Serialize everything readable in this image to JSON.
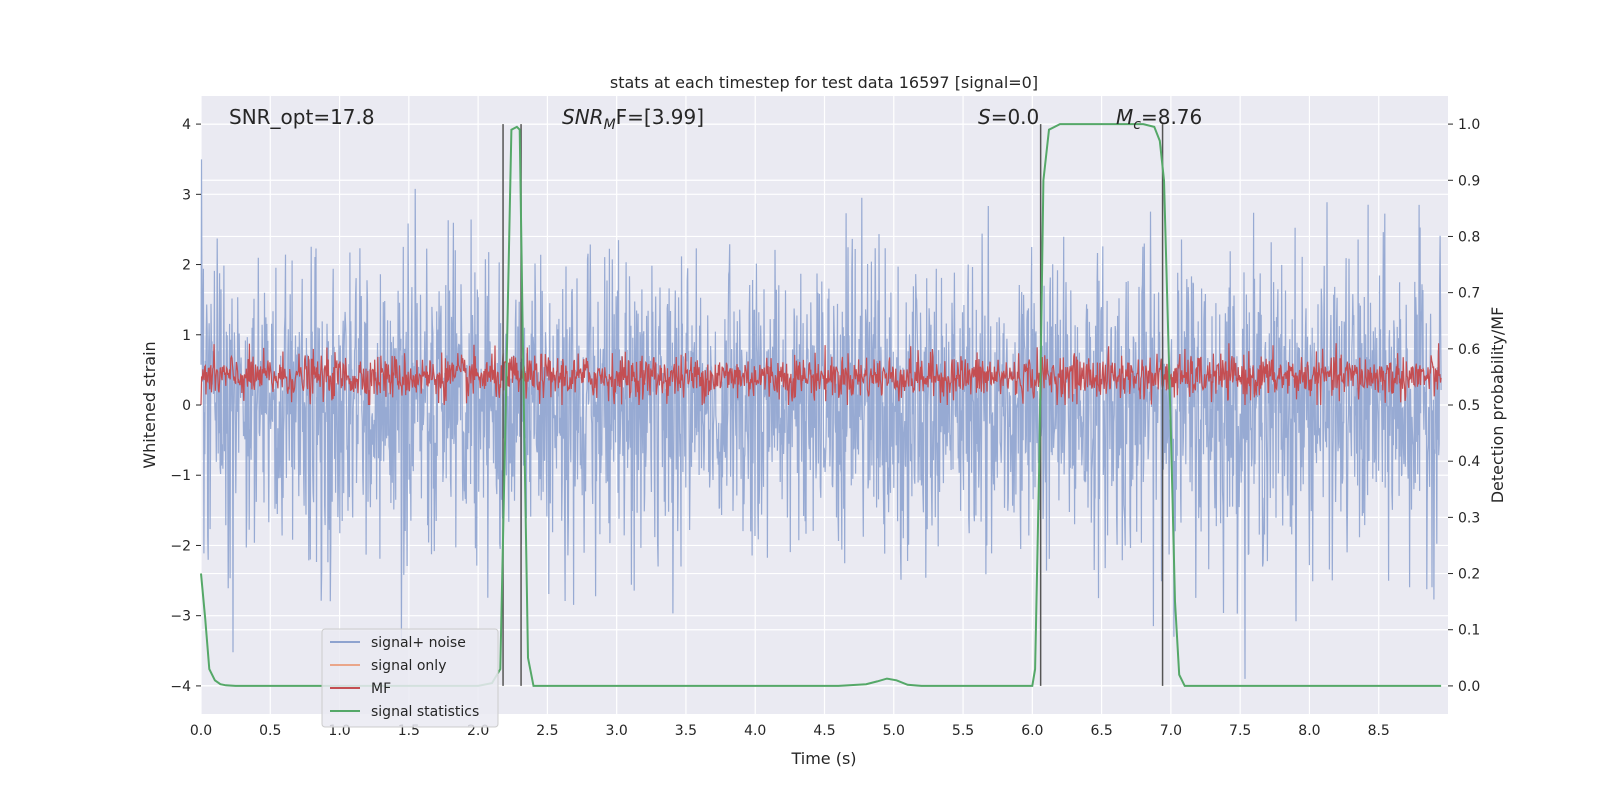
{
  "chart_data": {
    "type": "line",
    "title": "stats at each timestep for test data 16597 [signal=0]",
    "xlabel": "Time (s)",
    "ylabel_left": "Whitened strain",
    "ylabel_right": "Detection probability/MF",
    "xlim": [
      0.0,
      9.0
    ],
    "ylim_left": [
      -4.4,
      4.4
    ],
    "ylim_right": [
      -0.05,
      1.05
    ],
    "xticks": [
      "0.0",
      "0.5",
      "1.0",
      "1.5",
      "2.0",
      "2.5",
      "3.0",
      "3.5",
      "4.0",
      "4.5",
      "5.0",
      "5.5",
      "6.0",
      "6.5",
      "7.0",
      "7.5",
      "8.0",
      "8.5"
    ],
    "yticks_left": [
      "−4",
      "−3",
      "−2",
      "−1",
      "0",
      "1",
      "2",
      "3",
      "4"
    ],
    "yticks_right": [
      "0.0",
      "0.1",
      "0.2",
      "0.3",
      "0.4",
      "0.5",
      "0.6",
      "0.7",
      "0.8",
      "0.9",
      "1.0"
    ],
    "grid": true,
    "annotations": {
      "snr_opt": "SNR_opt=17.8",
      "snr_mf_base": "SNR",
      "snr_mf_sub": "M",
      "snr_mf_rest": "F=[3.99]",
      "s_sym": "S",
      "s_val": "=0.0",
      "mc_base": "M",
      "mc_sub": "c",
      "mc_val": "=8.76"
    },
    "vertical_lines_s": [
      2.18,
      2.31,
      6.06,
      6.94
    ],
    "series": [
      {
        "name": "signal+ noise",
        "axis": "left",
        "color": "#8ea3cf",
        "description": "whitened noise, approx. uniform amplitude between -3.9 and 4.0",
        "amplitude_range": [
          -3.9,
          4.0
        ]
      },
      {
        "name": "signal only",
        "axis": "left",
        "color": "#eaa68a",
        "values": []
      },
      {
        "name": "MF",
        "axis": "right",
        "color": "#c44e52",
        "description": "matched filter output fluctuating around 0.55",
        "center": 0.55,
        "range": [
          0.5,
          0.61
        ]
      },
      {
        "name": "signal statistics",
        "axis": "right",
        "color": "#55a868",
        "x": [
          0.0,
          0.03,
          0.06,
          0.1,
          0.14,
          0.18,
          0.25,
          0.5,
          1.0,
          2.0,
          2.1,
          2.16,
          2.2,
          2.24,
          2.28,
          2.3,
          2.33,
          2.36,
          2.4,
          2.45,
          2.6,
          3.0,
          4.0,
          4.6,
          4.8,
          4.88,
          4.95,
          5.02,
          5.1,
          5.2,
          5.5,
          6.0,
          6.02,
          6.05,
          6.08,
          6.12,
          6.2,
          6.3,
          6.5,
          6.8,
          6.88,
          6.92,
          6.95,
          7.0,
          7.03,
          7.06,
          7.1,
          7.5,
          8.0,
          8.5,
          8.95
        ],
        "y": [
          0.2,
          0.12,
          0.03,
          0.01,
          0.003,
          0.001,
          0.0,
          0.0,
          0.0,
          0.0,
          0.005,
          0.03,
          0.5,
          0.99,
          0.995,
          0.99,
          0.5,
          0.05,
          0.0,
          0.0,
          0.0,
          0.0,
          0.0,
          0.0,
          0.003,
          0.008,
          0.013,
          0.01,
          0.002,
          0.0,
          0.0,
          0.0,
          0.03,
          0.4,
          0.9,
          0.99,
          1.0,
          1.0,
          1.0,
          1.0,
          0.995,
          0.97,
          0.9,
          0.45,
          0.15,
          0.02,
          0.0,
          0.0,
          0.0,
          0.0,
          0.0
        ]
      }
    ]
  }
}
